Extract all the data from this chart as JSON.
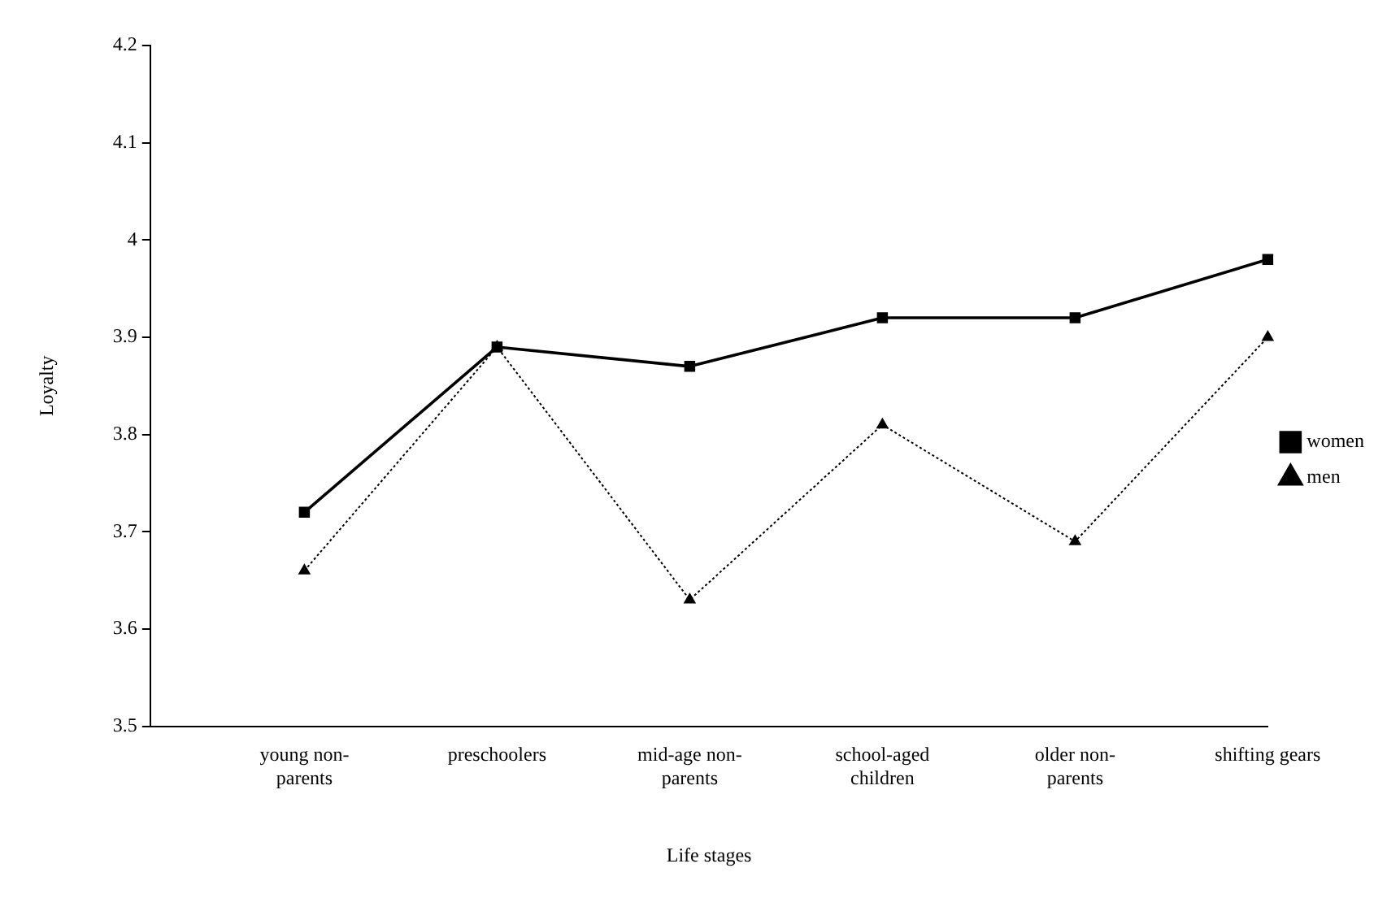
{
  "chart_data": {
    "type": "line",
    "xlabel": "Life stages",
    "ylabel": "Loyalty",
    "categories": [
      "young non-parents",
      "preschoolers",
      "mid-age non-parents",
      "school-aged children",
      "older non-parents",
      "shifting gears"
    ],
    "series": [
      {
        "name": "women",
        "color": "#000000",
        "marker": "square",
        "line_style": "solid",
        "values": [
          3.72,
          3.89,
          3.87,
          3.92,
          3.92,
          3.98
        ]
      },
      {
        "name": "men",
        "color": "#000000",
        "marker": "triangle",
        "line_style": "dotted",
        "values": [
          3.66,
          3.89,
          3.63,
          3.81,
          3.69,
          3.9
        ]
      }
    ],
    "ylim": [
      3.5,
      4.2
    ],
    "yticks": [
      3.5,
      3.6,
      3.7,
      3.8,
      3.9,
      4,
      4.1,
      4.2
    ],
    "grid": false,
    "legend": "right"
  }
}
